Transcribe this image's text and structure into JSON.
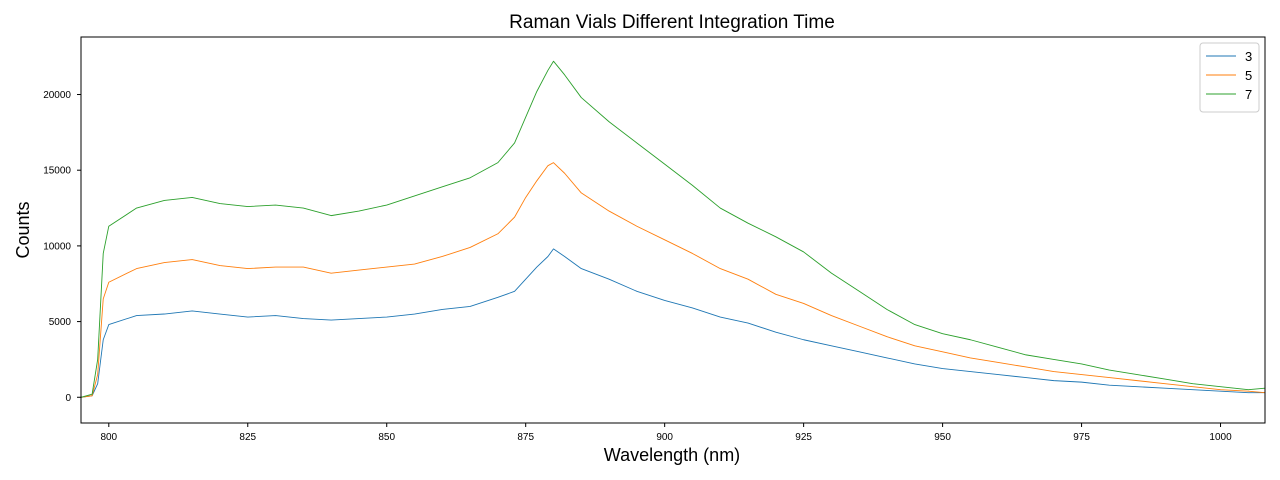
{
  "chart_data": {
    "type": "line",
    "title": "Raman Vials Different Integration Time",
    "xlabel": "Wavelength (nm)",
    "ylabel": "Counts",
    "xlim": [
      795,
      1008
    ],
    "ylim": [
      -1700,
      23800
    ],
    "xticks": [
      800,
      825,
      850,
      875,
      900,
      925,
      950,
      975,
      1000
    ],
    "yticks": [
      0,
      5000,
      10000,
      15000,
      20000
    ],
    "grid": false,
    "legend_position": "top-right",
    "series": [
      {
        "name": "3",
        "color": "#1f77b4",
        "x": [
          795,
          797,
          798,
          799,
          800,
          805,
          810,
          815,
          820,
          825,
          830,
          835,
          840,
          845,
          850,
          855,
          860,
          865,
          870,
          873,
          875,
          877,
          879,
          880,
          882,
          885,
          890,
          895,
          900,
          905,
          910,
          915,
          920,
          925,
          930,
          935,
          940,
          945,
          950,
          955,
          960,
          965,
          970,
          975,
          980,
          985,
          990,
          995,
          1000,
          1005,
          1008
        ],
        "y": [
          0,
          100,
          900,
          3800,
          4800,
          5400,
          5500,
          5700,
          5500,
          5300,
          5400,
          5200,
          5100,
          5200,
          5300,
          5500,
          5800,
          6000,
          6600,
          7000,
          7800,
          8600,
          9300,
          9800,
          9300,
          8500,
          7800,
          7000,
          6400,
          5900,
          5300,
          4900,
          4300,
          3800,
          3400,
          3000,
          2600,
          2200,
          1900,
          1700,
          1500,
          1300,
          1100,
          1000,
          800,
          700,
          600,
          500,
          400,
          300,
          300
        ]
      },
      {
        "name": "5",
        "color": "#ff7f0e",
        "x": [
          795,
          797,
          798,
          799,
          800,
          805,
          810,
          815,
          820,
          825,
          830,
          835,
          840,
          845,
          850,
          855,
          860,
          865,
          870,
          873,
          875,
          877,
          879,
          880,
          882,
          885,
          890,
          895,
          900,
          905,
          910,
          915,
          920,
          925,
          930,
          935,
          940,
          945,
          950,
          955,
          960,
          965,
          970,
          975,
          980,
          985,
          990,
          995,
          1000,
          1005,
          1008
        ],
        "y": [
          0,
          100,
          1500,
          6500,
          7600,
          8500,
          8900,
          9100,
          8700,
          8500,
          8600,
          8600,
          8200,
          8400,
          8600,
          8800,
          9300,
          9900,
          10800,
          11900,
          13200,
          14300,
          15300,
          15500,
          14800,
          13500,
          12300,
          11300,
          10400,
          9500,
          8500,
          7800,
          6800,
          6200,
          5400,
          4700,
          4000,
          3400,
          3000,
          2600,
          2300,
          2000,
          1700,
          1500,
          1300,
          1100,
          900,
          700,
          500,
          400,
          300
        ]
      },
      {
        "name": "7",
        "color": "#2ca02c",
        "x": [
          795,
          797,
          798,
          799,
          800,
          805,
          810,
          815,
          820,
          825,
          830,
          835,
          840,
          845,
          850,
          855,
          860,
          865,
          870,
          873,
          875,
          877,
          879,
          880,
          882,
          885,
          890,
          895,
          900,
          905,
          910,
          915,
          920,
          925,
          930,
          935,
          940,
          945,
          950,
          955,
          960,
          965,
          970,
          975,
          980,
          985,
          990,
          995,
          1000,
          1005,
          1008
        ],
        "y": [
          0,
          200,
          2500,
          9500,
          11300,
          12500,
          13000,
          13200,
          12800,
          12600,
          12700,
          12500,
          12000,
          12300,
          12700,
          13300,
          13900,
          14500,
          15500,
          16800,
          18500,
          20200,
          21600,
          22200,
          21300,
          19800,
          18200,
          16800,
          15400,
          14000,
          12500,
          11500,
          10600,
          9600,
          8200,
          7000,
          5800,
          4800,
          4200,
          3800,
          3300,
          2800,
          2500,
          2200,
          1800,
          1500,
          1200,
          900,
          700,
          500,
          600
        ]
      }
    ]
  }
}
